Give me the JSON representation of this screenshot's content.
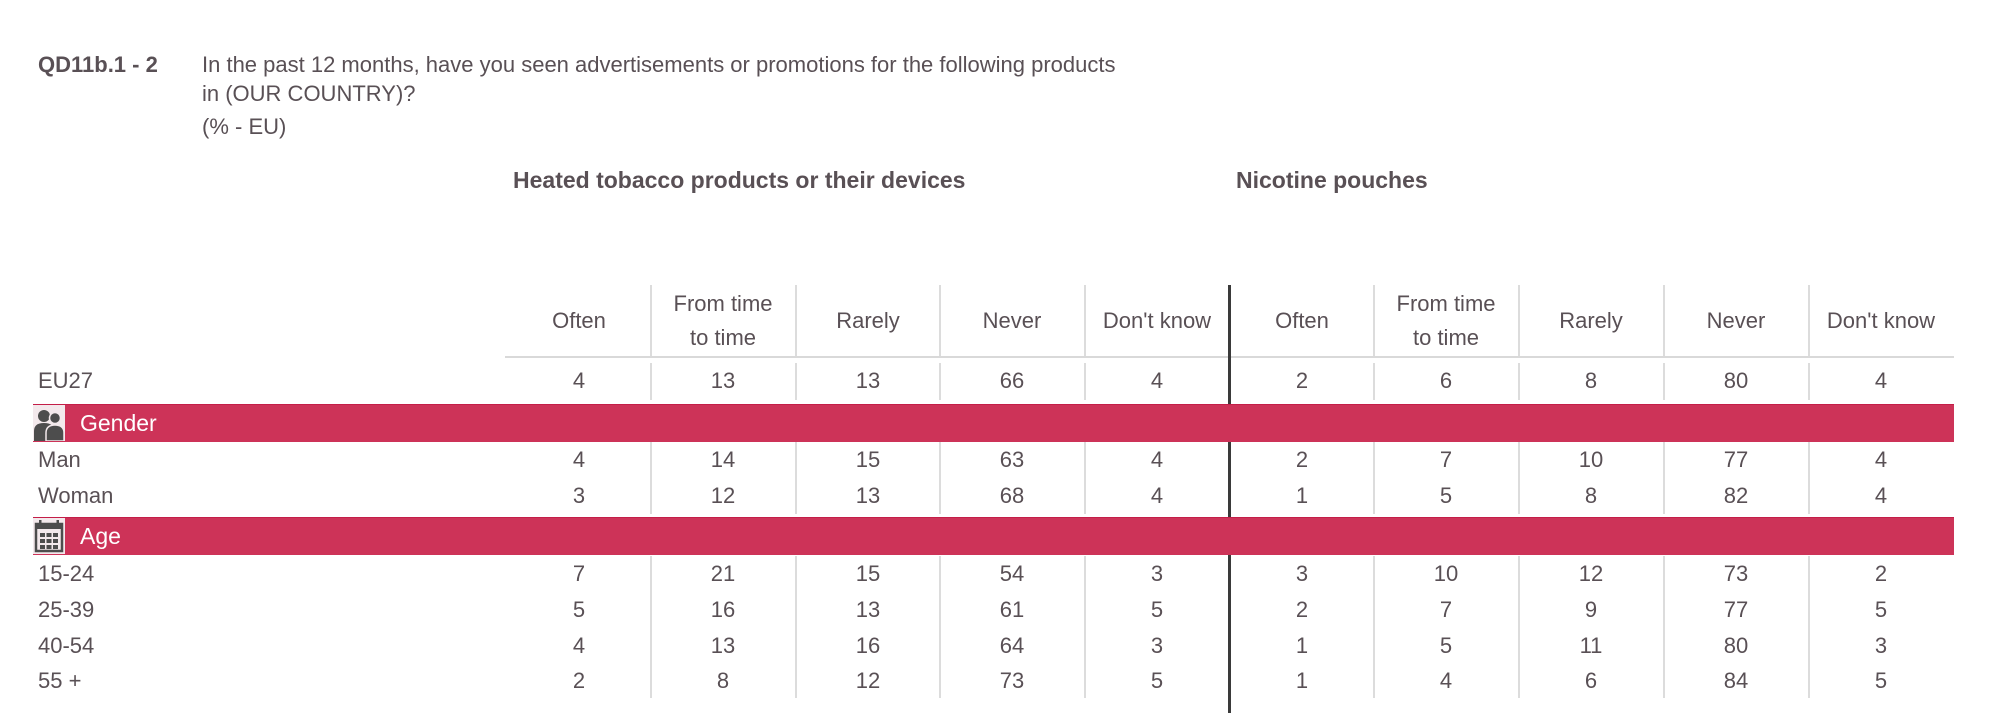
{
  "question": {
    "code": "QD11b.1 - 2",
    "lines": [
      "In the past 12 months, have you seen advertisements or promotions for the following products",
      "in (OUR COUNTRY)?",
      "(% - EU)"
    ]
  },
  "sections": [
    {
      "title": "Heated tobacco products or their devices"
    },
    {
      "title": "Nicotine pouches"
    }
  ],
  "columns": [
    "Often",
    "From time to time",
    "Rarely",
    "Never",
    "Don't know"
  ],
  "column_lines": [
    [
      "Often"
    ],
    [
      "From time",
      "to time"
    ],
    [
      "Rarely"
    ],
    [
      "Never"
    ],
    [
      "Don't know"
    ]
  ],
  "groups": {
    "gender": {
      "label": "Gender",
      "icon": "people-icon"
    },
    "age": {
      "label": "Age",
      "icon": "calendar-icon"
    }
  },
  "rows": [
    {
      "label": "EU27",
      "heated": [
        "4",
        "13",
        "13",
        "66",
        "4"
      ],
      "pouches": [
        "2",
        "6",
        "8",
        "80",
        "4"
      ]
    },
    {
      "label": "Man",
      "heated": [
        "4",
        "14",
        "15",
        "63",
        "4"
      ],
      "pouches": [
        "2",
        "7",
        "10",
        "77",
        "4"
      ]
    },
    {
      "label": "Woman",
      "heated": [
        "3",
        "12",
        "13",
        "68",
        "4"
      ],
      "pouches": [
        "1",
        "5",
        "8",
        "82",
        "4"
      ]
    },
    {
      "label": "15-24",
      "heated": [
        "7",
        "21",
        "15",
        "54",
        "3"
      ],
      "pouches": [
        "3",
        "10",
        "12",
        "73",
        "2"
      ]
    },
    {
      "label": "25-39",
      "heated": [
        "5",
        "16",
        "13",
        "61",
        "5"
      ],
      "pouches": [
        "2",
        "7",
        "9",
        "77",
        "5"
      ]
    },
    {
      "label": "40-54",
      "heated": [
        "4",
        "13",
        "16",
        "64",
        "3"
      ],
      "pouches": [
        "1",
        "5",
        "11",
        "80",
        "3"
      ]
    },
    {
      "label": "55 +",
      "heated": [
        "2",
        "8",
        "12",
        "73",
        "5"
      ],
      "pouches": [
        "1",
        "4",
        "6",
        "84",
        "5"
      ]
    }
  ],
  "colors": {
    "group_bar": "#cd3358",
    "text": "#595055",
    "divider": "#dcdcdc",
    "section_divider": "#3a3a3a"
  },
  "chart_data": {
    "type": "table",
    "title": "QD11b.1 - 2 In the past 12 months, have you seen advertisements or promotions for the following products in (OUR COUNTRY)? (% - EU)",
    "unit": "%",
    "categories": [
      "Often",
      "From time to time",
      "Rarely",
      "Never",
      "Don't know"
    ],
    "tables": [
      {
        "name": "Heated tobacco products or their devices",
        "rows": [
          {
            "group": "",
            "label": "EU27",
            "values": [
              4,
              13,
              13,
              66,
              4
            ]
          },
          {
            "group": "Gender",
            "label": "Man",
            "values": [
              4,
              14,
              15,
              63,
              4
            ]
          },
          {
            "group": "Gender",
            "label": "Woman",
            "values": [
              3,
              12,
              13,
              68,
              4
            ]
          },
          {
            "group": "Age",
            "label": "15-24",
            "values": [
              7,
              21,
              15,
              54,
              3
            ]
          },
          {
            "group": "Age",
            "label": "25-39",
            "values": [
              5,
              16,
              13,
              61,
              5
            ]
          },
          {
            "group": "Age",
            "label": "40-54",
            "values": [
              4,
              13,
              16,
              64,
              3
            ]
          },
          {
            "group": "Age",
            "label": "55 +",
            "values": [
              2,
              8,
              12,
              73,
              5
            ]
          }
        ]
      },
      {
        "name": "Nicotine pouches",
        "rows": [
          {
            "group": "",
            "label": "EU27",
            "values": [
              2,
              6,
              8,
              80,
              4
            ]
          },
          {
            "group": "Gender",
            "label": "Man",
            "values": [
              2,
              7,
              10,
              77,
              4
            ]
          },
          {
            "group": "Gender",
            "label": "Woman",
            "values": [
              1,
              5,
              8,
              82,
              4
            ]
          },
          {
            "group": "Age",
            "label": "15-24",
            "values": [
              3,
              10,
              12,
              73,
              2
            ]
          },
          {
            "group": "Age",
            "label": "25-39",
            "values": [
              2,
              7,
              9,
              77,
              5
            ]
          },
          {
            "group": "Age",
            "label": "40-54",
            "values": [
              1,
              5,
              11,
              80,
              3
            ]
          },
          {
            "group": "Age",
            "label": "55 +",
            "values": [
              1,
              4,
              6,
              84,
              5
            ]
          }
        ]
      }
    ]
  }
}
